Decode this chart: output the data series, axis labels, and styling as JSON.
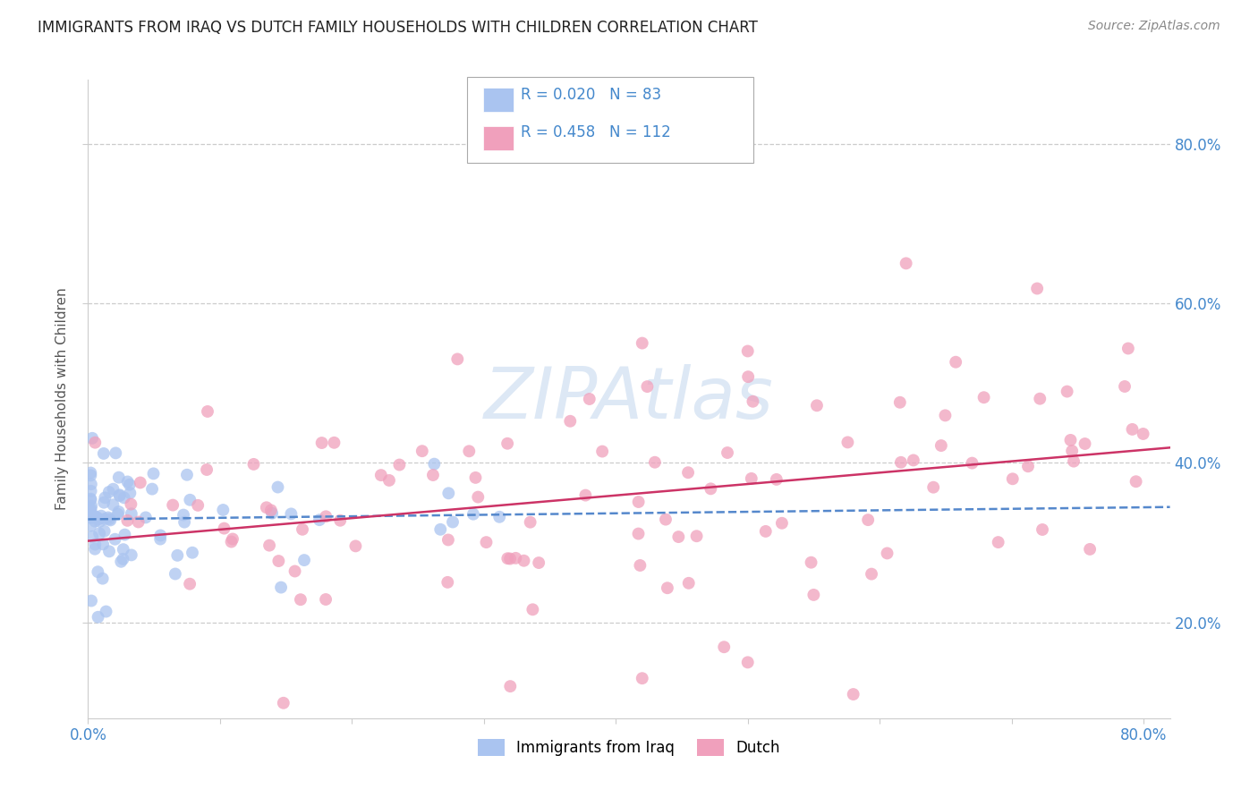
{
  "title": "IMMIGRANTS FROM IRAQ VS DUTCH FAMILY HOUSEHOLDS WITH CHILDREN CORRELATION CHART",
  "source": "Source: ZipAtlas.com",
  "ylabel": "Family Households with Children",
  "xlim": [
    0.0,
    0.82
  ],
  "ylim": [
    0.08,
    0.88
  ],
  "yticks": [
    0.2,
    0.4,
    0.6,
    0.8
  ],
  "ytick_labels": [
    "20.0%",
    "40.0%",
    "60.0%",
    "80.0%"
  ],
  "xtick_positions": [
    0.0,
    0.1,
    0.2,
    0.3,
    0.4,
    0.5,
    0.6,
    0.7,
    0.8
  ],
  "xtick_labels": [
    "0.0%",
    "",
    "",
    "",
    "",
    "",
    "",
    "",
    "80.0%"
  ],
  "series1_label": "Immigrants from Iraq",
  "series1_R": "0.020",
  "series1_N": "83",
  "series1_color": "#aac4f0",
  "series1_line_color": "#5588cc",
  "series1_line_style": "--",
  "series2_label": "Dutch",
  "series2_R": "0.458",
  "series2_N": "112",
  "series2_color": "#f0a0bc",
  "series2_line_color": "#cc3366",
  "series2_line_style": "-",
  "background_color": "#ffffff",
  "grid_color": "#cccccc",
  "title_color": "#222222",
  "title_fontsize": 12,
  "axis_label_color": "#4488cc",
  "right_ytick_color": "#4488cc",
  "source_color": "#888888",
  "watermark_color": "#dde8f5",
  "legend_edge_color": "#aaaaaa"
}
